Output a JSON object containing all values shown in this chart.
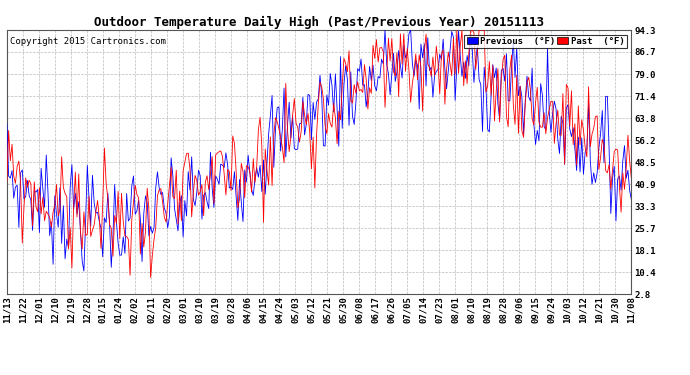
{
  "title": "Outdoor Temperature Daily High (Past/Previous Year) 20151113",
  "copyright": "Copyright 2015 Cartronics.com",
  "ylabel_right": [
    "94.3",
    "86.7",
    "79.0",
    "71.4",
    "63.8",
    "56.2",
    "48.5",
    "40.9",
    "33.3",
    "25.7",
    "18.1",
    "10.4",
    "2.8"
  ],
  "ytick_values": [
    94.3,
    86.7,
    79.0,
    71.4,
    63.8,
    56.2,
    48.5,
    40.9,
    33.3,
    25.7,
    18.1,
    10.4,
    2.8
  ],
  "ylim": [
    2.8,
    94.3
  ],
  "xlabels": [
    "11/13",
    "11/22",
    "12/01",
    "12/10",
    "12/19",
    "12/28",
    "01/15",
    "01/24",
    "02/02",
    "02/11",
    "02/20",
    "03/01",
    "03/10",
    "03/19",
    "03/28",
    "04/06",
    "04/15",
    "04/24",
    "05/03",
    "05/12",
    "05/21",
    "05/30",
    "06/08",
    "06/17",
    "06/26",
    "07/05",
    "07/14",
    "07/23",
    "08/01",
    "08/10",
    "08/19",
    "08/28",
    "09/06",
    "09/15",
    "09/24",
    "10/03",
    "10/12",
    "10/21",
    "10/30",
    "11/08"
  ],
  "color_past": "#ff0000",
  "color_prev": "#0000ff",
  "legend_prev_label": "Previous  (°F)",
  "legend_past_label": "Past  (°F)",
  "background_color": "#ffffff",
  "grid_color": "#bbbbbb",
  "title_fontsize": 9,
  "axis_label_fontsize": 6.5,
  "copyright_fontsize": 6.5
}
